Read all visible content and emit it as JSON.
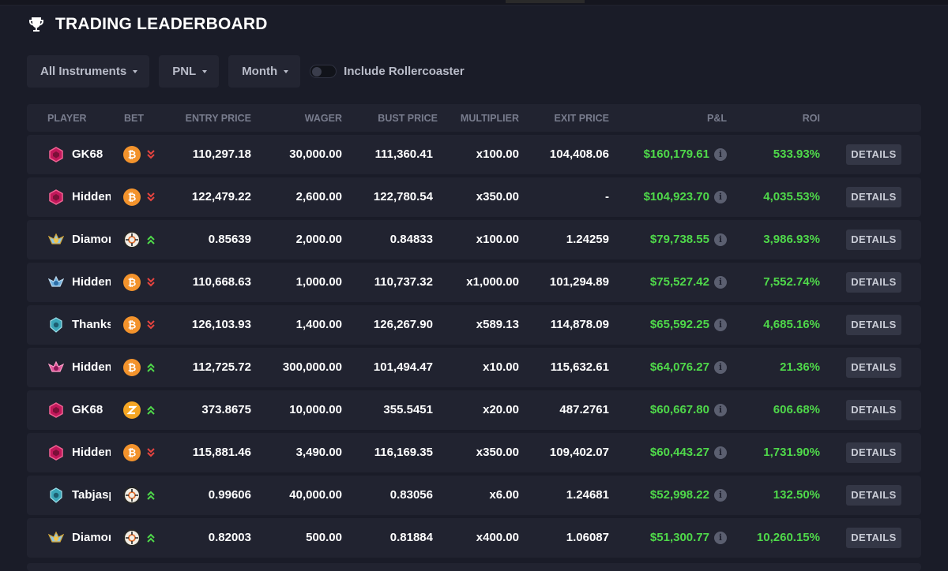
{
  "header": {
    "title": "TRADING LEADERBOARD",
    "icon": "trophy-icon"
  },
  "filters": {
    "instruments": "All Instruments",
    "metric": "PNL",
    "period": "Month",
    "toggle_label": "Include Rollercoaster",
    "toggle_on": false
  },
  "columns": {
    "player": "PLAYER",
    "bet": "BET",
    "entry_price": "ENTRY PRICE",
    "wager": "WAGER",
    "bust_price": "BUST PRICE",
    "multiplier": "MULTIPLIER",
    "exit_price": "EXIT PRICE",
    "pnl": "P&L",
    "roi": "ROI"
  },
  "details_label": "DETAILS",
  "info_glyph": "i",
  "colors": {
    "accent_green": "#4fd94a",
    "down_red": "#e8443f",
    "up_green": "#4fd94a"
  },
  "rows": [
    {
      "player": "GK68",
      "badge": "pink-hex",
      "coin": "btc",
      "direction": "down",
      "entry": "110,297.18",
      "wager": "30,000.00",
      "bust": "111,360.41",
      "multiplier": "x100.00",
      "exit": "104,408.06",
      "pnl": "$160,179.61",
      "roi": "533.93%"
    },
    {
      "player": "Hidden",
      "badge": "pink-hex",
      "coin": "btc",
      "direction": "down",
      "entry": "122,479.22",
      "wager": "2,600.00",
      "bust": "122,780.54",
      "multiplier": "x350.00",
      "exit": "-",
      "pnl": "$104,923.70",
      "roi": "4,035.53%"
    },
    {
      "player": "Diamond",
      "badge": "gold-wing",
      "coin": "ro",
      "direction": "up",
      "entry": "0.85639",
      "wager": "2,000.00",
      "bust": "0.84833",
      "multiplier": "x100.00",
      "exit": "1.24259",
      "pnl": "$79,738.55",
      "roi": "3,986.93%"
    },
    {
      "player": "Hidden",
      "badge": "blue-wing",
      "coin": "btc",
      "direction": "down",
      "entry": "110,668.63",
      "wager": "1,000.00",
      "bust": "110,737.32",
      "multiplier": "x1,000.00",
      "exit": "101,294.89",
      "pnl": "$75,527.42",
      "roi": "7,552.74%"
    },
    {
      "player": "Thanks",
      "badge": "teal-crest",
      "coin": "btc",
      "direction": "down",
      "entry": "126,103.93",
      "wager": "1,400.00",
      "bust": "126,267.90",
      "multiplier": "x589.13",
      "exit": "114,878.09",
      "pnl": "$65,592.25",
      "roi": "4,685.16%"
    },
    {
      "player": "Hidden",
      "badge": "pink-wing",
      "coin": "btc",
      "direction": "up",
      "entry": "112,725.72",
      "wager": "300,000.00",
      "bust": "101,494.47",
      "multiplier": "x10.00",
      "exit": "115,632.61",
      "pnl": "$64,076.27",
      "roi": "21.36%"
    },
    {
      "player": "GK68",
      "badge": "pink-hex",
      "coin": "zz",
      "direction": "up",
      "entry": "373.8675",
      "wager": "10,000.00",
      "bust": "355.5451",
      "multiplier": "x20.00",
      "exit": "487.2761",
      "pnl": "$60,667.80",
      "roi": "606.68%"
    },
    {
      "player": "Hidden",
      "badge": "pink-hex",
      "coin": "btc",
      "direction": "down",
      "entry": "115,881.46",
      "wager": "3,490.00",
      "bust": "116,169.35",
      "multiplier": "x350.00",
      "exit": "109,402.07",
      "pnl": "$60,443.27",
      "roi": "1,731.90%"
    },
    {
      "player": "Tabjasper",
      "badge": "teal-crest",
      "coin": "ro",
      "direction": "up",
      "entry": "0.99606",
      "wager": "40,000.00",
      "bust": "0.83056",
      "multiplier": "x6.00",
      "exit": "1.24681",
      "pnl": "$52,998.22",
      "roi": "132.50%"
    },
    {
      "player": "Diamond",
      "badge": "gold-wing",
      "coin": "ro",
      "direction": "up",
      "entry": "0.82003",
      "wager": "500.00",
      "bust": "0.81884",
      "multiplier": "x400.00",
      "exit": "1.06087",
      "pnl": "$51,300.77",
      "roi": "10,260.15%"
    }
  ]
}
